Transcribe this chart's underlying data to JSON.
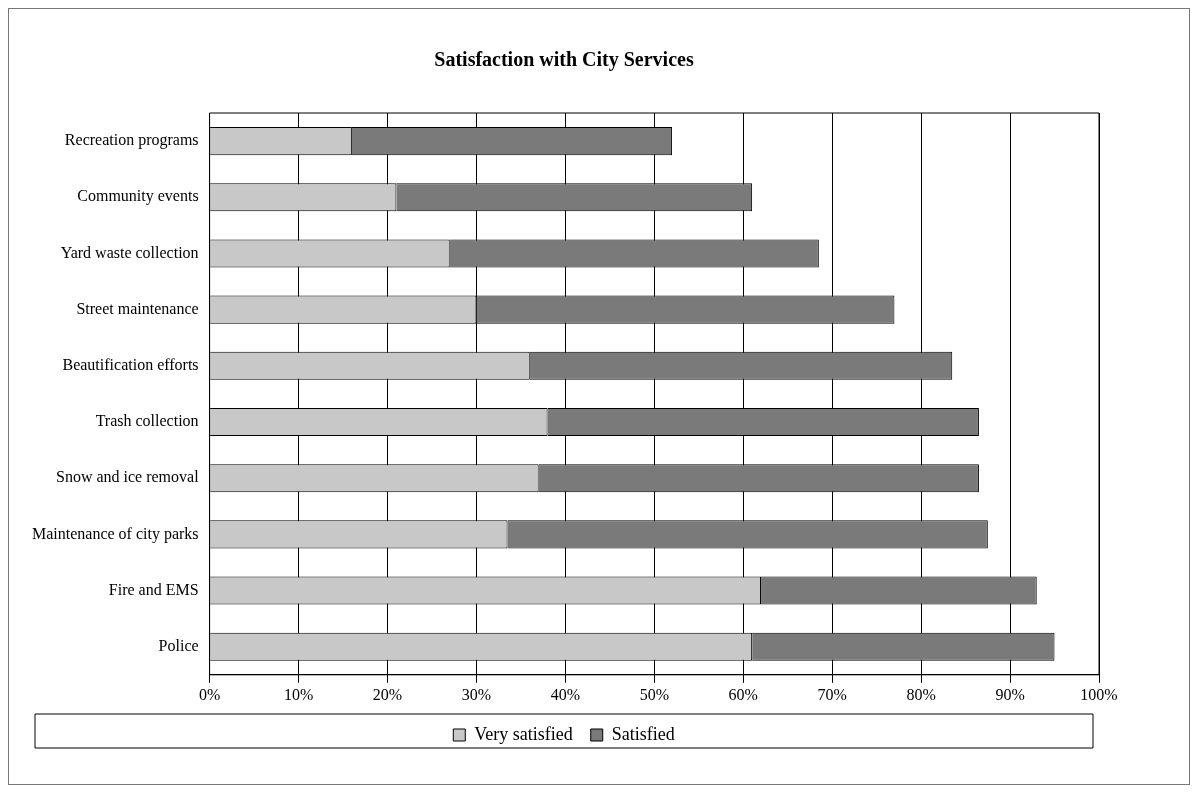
{
  "chart_data": {
    "type": "bar",
    "orientation": "horizontal",
    "stacked": true,
    "title": "Satisfaction with City Services",
    "categories": [
      "Recreation programs",
      "Community events",
      "Yard waste collection",
      "Street maintenance",
      "Beautification efforts",
      "Trash collection",
      "Snow and ice removal",
      "Maintenance of city parks",
      "Fire and EMS",
      "Police"
    ],
    "series": [
      {
        "name": "Very satisfied",
        "color": "#c8c8c8",
        "values": [
          16,
          21,
          27,
          30,
          36,
          38,
          37,
          33.5,
          62,
          61
        ]
      },
      {
        "name": "Satisfied",
        "color": "#7a7a7a",
        "values": [
          36,
          40,
          41.5,
          47,
          47.5,
          48.5,
          49.5,
          54,
          31,
          34
        ]
      }
    ],
    "xlim": [
      0,
      100
    ],
    "xticks": [
      {
        "value": 0,
        "label": "0%"
      },
      {
        "value": 10,
        "label": "10%"
      },
      {
        "value": 20,
        "label": "20%"
      },
      {
        "value": 30,
        "label": "30%"
      },
      {
        "value": 40,
        "label": "40%"
      },
      {
        "value": 50,
        "label": "50%"
      },
      {
        "value": 60,
        "label": "60%"
      },
      {
        "value": 70,
        "label": "70%"
      },
      {
        "value": 80,
        "label": "80%"
      },
      {
        "value": 90,
        "label": "90%"
      },
      {
        "value": 100,
        "label": "100%"
      }
    ],
    "grid": "x",
    "legend": "bottom"
  }
}
